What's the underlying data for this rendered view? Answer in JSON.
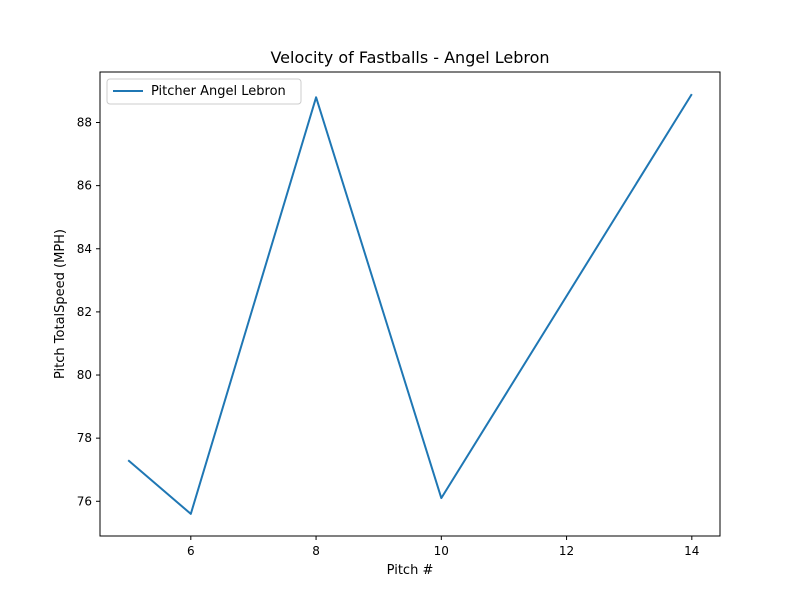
{
  "chart_data": {
    "type": "line",
    "title": "Velocity of Fastballs - Angel Lebron",
    "xlabel": "Pitch #",
    "ylabel": "Pitch TotalSpeed (MPH)",
    "xlim": [
      4.55,
      14.45
    ],
    "ylim": [
      74.9,
      89.6
    ],
    "xticks": [
      6,
      8,
      10,
      12,
      14
    ],
    "yticks": [
      76,
      78,
      80,
      82,
      84,
      86,
      88
    ],
    "grid": false,
    "legend_position": "top-left",
    "series": [
      {
        "name": "Pitcher Angel Lebron",
        "color": "#1f77b4",
        "x": [
          5,
          6,
          8,
          10,
          14
        ],
        "y": [
          77.3,
          75.6,
          88.8,
          76.1,
          88.9
        ]
      }
    ]
  }
}
